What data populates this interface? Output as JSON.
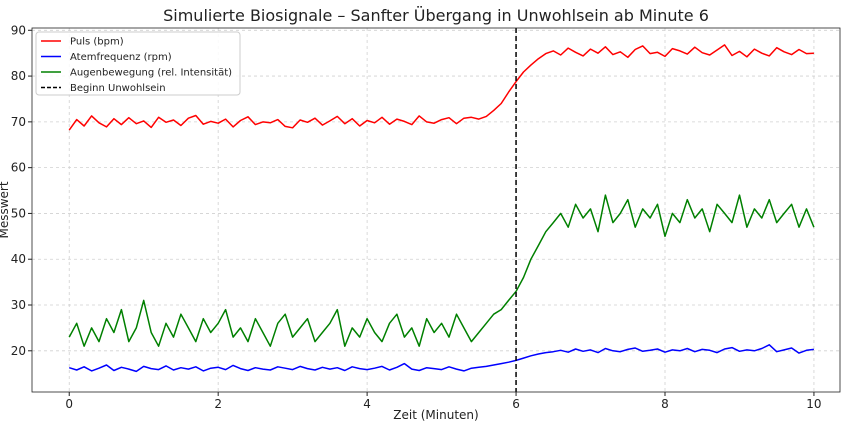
{
  "chart_data": {
    "type": "line",
    "title": "Simulierte Biosignale – Sanfter Übergang in Unwohlsein ab Minute 6",
    "xlabel": "Zeit (Minuten)",
    "ylabel": "Messwert",
    "xlim": [
      -0.5,
      10.35
    ],
    "ylim": [
      11,
      90.5
    ],
    "xticks": [
      0,
      2,
      4,
      6,
      8,
      10
    ],
    "yticks": [
      20,
      30,
      40,
      50,
      60,
      70,
      80,
      90
    ],
    "grid": true,
    "legend_position": "top-left",
    "x_start": 0,
    "x_step": 0.1,
    "series": [
      {
        "name": "Puls (bpm)",
        "color": "#ff0000",
        "values": [
          68.2,
          70.5,
          69.1,
          71.3,
          69.8,
          68.9,
          70.7,
          69.4,
          70.9,
          69.6,
          70.2,
          68.8,
          71.0,
          69.9,
          70.4,
          69.2,
          70.8,
          71.4,
          69.5,
          70.1,
          69.7,
          70.6,
          68.9,
          70.3,
          71.1,
          69.4,
          70.0,
          69.8,
          70.5,
          69.0,
          68.7,
          70.4,
          69.9,
          70.8,
          69.3,
          70.2,
          71.2,
          69.6,
          70.7,
          69.1,
          70.3,
          69.8,
          71.0,
          69.5,
          70.6,
          70.1,
          69.4,
          71.3,
          70.0,
          69.7,
          70.5,
          70.9,
          69.6,
          70.8,
          71.0,
          70.6,
          71.2,
          72.5,
          74.0,
          76.5,
          78.8,
          80.9,
          82.4,
          83.8,
          84.9,
          85.5,
          84.6,
          86.1,
          85.2,
          84.4,
          85.9,
          85.0,
          86.4,
          84.7,
          85.3,
          84.1,
          85.8,
          86.6,
          84.9,
          85.2,
          84.3,
          86.0,
          85.5,
          84.8,
          86.3,
          85.1,
          84.6,
          85.7,
          86.8,
          84.5,
          85.4,
          84.2,
          85.9,
          85.0,
          84.4,
          86.2,
          85.3,
          84.7,
          85.8,
          84.9,
          85.0
        ]
      },
      {
        "name": "Atemfrequenz (rpm)",
        "color": "#0000ff",
        "values": [
          16.3,
          15.8,
          16.5,
          15.6,
          16.2,
          16.9,
          15.7,
          16.4,
          16.0,
          15.5,
          16.6,
          16.1,
          15.9,
          16.7,
          15.8,
          16.3,
          16.0,
          16.5,
          15.6,
          16.2,
          16.4,
          15.9,
          16.8,
          16.1,
          15.7,
          16.3,
          16.0,
          15.8,
          16.5,
          16.2,
          15.9,
          16.6,
          16.1,
          15.8,
          16.4,
          16.0,
          16.3,
          15.7,
          16.5,
          16.1,
          15.9,
          16.2,
          16.6,
          15.8,
          16.4,
          17.2,
          16.0,
          15.7,
          16.3,
          16.1,
          15.9,
          16.5,
          16.0,
          15.6,
          16.2,
          16.4,
          16.6,
          16.9,
          17.2,
          17.5,
          17.9,
          18.4,
          18.9,
          19.3,
          19.6,
          19.8,
          20.1,
          19.7,
          20.4,
          19.9,
          20.2,
          19.6,
          20.5,
          20.0,
          19.8,
          20.3,
          20.6,
          19.9,
          20.1,
          20.4,
          19.7,
          20.2,
          20.0,
          20.5,
          19.8,
          20.3,
          20.1,
          19.6,
          20.4,
          20.7,
          19.9,
          20.2,
          20.0,
          20.5,
          21.3,
          19.8,
          20.2,
          20.6,
          19.5,
          20.1,
          20.3
        ]
      },
      {
        "name": "Augenbewegung (rel. Intensität)",
        "color": "#008000",
        "values": [
          23,
          26,
          21,
          25,
          22,
          27,
          24,
          29,
          22,
          25,
          31,
          24,
          21,
          26,
          23,
          28,
          25,
          22,
          27,
          24,
          26,
          29,
          23,
          25,
          22,
          27,
          24,
          21,
          26,
          28,
          23,
          25,
          27,
          22,
          24,
          26,
          29,
          21,
          25,
          23,
          27,
          24,
          22,
          26,
          28,
          23,
          25,
          21,
          27,
          24,
          26,
          23,
          28,
          25,
          22,
          24,
          26,
          28,
          29,
          31,
          33,
          36,
          40,
          43,
          46,
          48,
          50,
          47,
          52,
          49,
          51,
          46,
          54,
          48,
          50,
          53,
          47,
          51,
          49,
          52,
          45,
          50,
          48,
          53,
          49,
          51,
          46,
          52,
          50,
          48,
          54,
          47,
          51,
          49,
          53,
          48,
          50,
          52,
          47,
          51,
          47
        ]
      }
    ],
    "annotations": [
      {
        "type": "vline",
        "x": 6,
        "label": "Beginn Unwohlsein",
        "color": "#000000",
        "style": "dashed"
      }
    ]
  }
}
